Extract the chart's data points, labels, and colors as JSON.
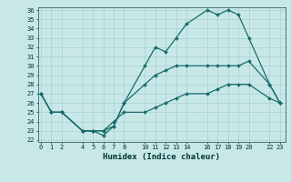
{
  "title": "",
  "xlabel": "Humidex (Indice chaleur)",
  "bg_color": "#c8e8e8",
  "grid_color": "#a8d0d0",
  "line_color": "#1a6b6b",
  "ylim": [
    22,
    36
  ],
  "yticks": [
    22,
    23,
    24,
    25,
    26,
    27,
    28,
    29,
    30,
    31,
    32,
    33,
    34,
    35,
    36
  ],
  "xticks": [
    0,
    1,
    2,
    4,
    5,
    6,
    7,
    8,
    10,
    11,
    12,
    13,
    14,
    16,
    17,
    18,
    19,
    20,
    22,
    23
  ],
  "xlim": [
    -0.3,
    23.5
  ],
  "line1_x": [
    0,
    1,
    2,
    4,
    5,
    6,
    7,
    8,
    10,
    11,
    12,
    13,
    14,
    16,
    17,
    18,
    19,
    20,
    22,
    23
  ],
  "line1_y": [
    27,
    25,
    25,
    23,
    23,
    22.5,
    23.5,
    26,
    30,
    32,
    31.5,
    33,
    34.5,
    36,
    35.5,
    36,
    35.5,
    33,
    28,
    26
  ],
  "line2_x": [
    0,
    1,
    2,
    4,
    5,
    6,
    7,
    8,
    10,
    11,
    12,
    13,
    14,
    16,
    17,
    18,
    19,
    20,
    22,
    23
  ],
  "line2_y": [
    27,
    25,
    25,
    23,
    23,
    23,
    23.5,
    26,
    28,
    29,
    29.5,
    30,
    30,
    30,
    30,
    30,
    30,
    30.5,
    28,
    26
  ],
  "line3_x": [
    0,
    1,
    2,
    4,
    5,
    6,
    7,
    8,
    10,
    11,
    12,
    13,
    14,
    16,
    17,
    18,
    19,
    20,
    22,
    23
  ],
  "line3_y": [
    27,
    25,
    25,
    23,
    23,
    23,
    24,
    25,
    25,
    25.5,
    26,
    26.5,
    27,
    27,
    27.5,
    28,
    28,
    28,
    26.5,
    26
  ]
}
